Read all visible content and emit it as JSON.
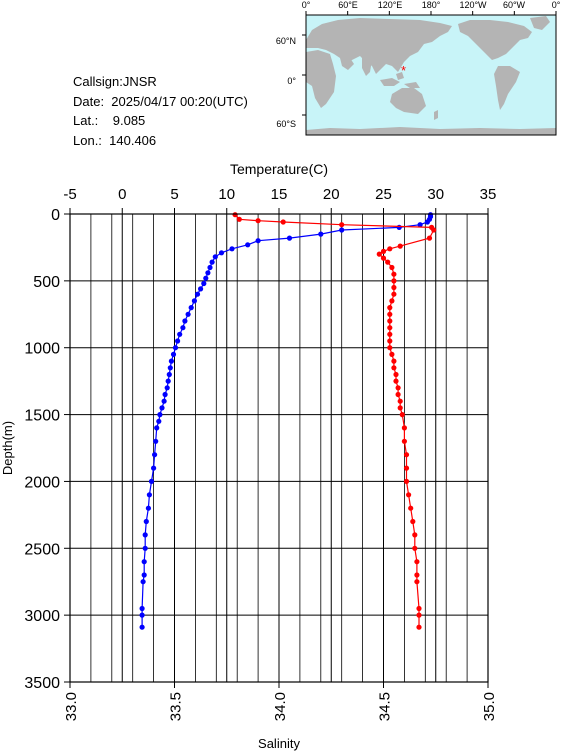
{
  "station": {
    "callsign": "Callsign:JNSR",
    "date": "Date:  2025/04/17 00:20(UTC)",
    "lat": "Lat.:    9.085",
    "lon": "Lon.:  140.406"
  },
  "map": {
    "top_ticks": [
      "0°",
      "60°E",
      "120°E",
      "180°",
      "120°W",
      "60°W",
      "0°"
    ],
    "right_ticks": [
      "60°N",
      "0°",
      "60°S"
    ],
    "ocean_color": "#c8f4f8",
    "land_color": "#b4b4b4",
    "marker_color": "#ff0000",
    "marker_lon": 140.406,
    "marker_lat": 9.085
  },
  "chart_data": {
    "type": "line",
    "xlabel_top": "Temperature(C)",
    "xlabel_bottom": "Salinity",
    "ylabel": "Depth(m)",
    "temp_lim": [
      -5,
      35
    ],
    "temp_ticks": [
      "-5",
      "0",
      "5",
      "10",
      "15",
      "20",
      "25",
      "30",
      "35"
    ],
    "sal_lim": [
      33.0,
      35.0
    ],
    "sal_ticks": [
      "33.0",
      "33.5",
      "34.0",
      "34.5",
      "35.0"
    ],
    "depth_lim": [
      0,
      3500
    ],
    "depth_ticks": [
      "0",
      "500",
      "1000",
      "1500",
      "2000",
      "2500",
      "3000",
      "3500"
    ],
    "grid": true,
    "series": [
      {
        "quantity": "temperature",
        "color": "#0000ff",
        "depth": [
          5,
          20,
          40,
          60,
          80,
          100,
          120,
          150,
          180,
          200,
          230,
          260,
          290,
          320,
          360,
          400,
          440,
          480,
          520,
          560,
          600,
          650,
          700,
          750,
          800,
          850,
          900,
          950,
          1000,
          1050,
          1100,
          1150,
          1200,
          1250,
          1300,
          1350,
          1400,
          1450,
          1500,
          1550,
          1600,
          1700,
          1800,
          1900,
          2000,
          2100,
          2200,
          2300,
          2400,
          2500,
          2600,
          2700,
          2750,
          2950,
          3000,
          3090
        ],
        "values": [
          29.5,
          29.5,
          29.4,
          29.2,
          28.5,
          26.5,
          21.0,
          19.0,
          16.0,
          13.0,
          12.0,
          10.5,
          9.5,
          8.9,
          8.6,
          8.4,
          8.2,
          8.0,
          7.8,
          7.5,
          7.2,
          6.9,
          6.6,
          6.3,
          6.0,
          5.8,
          5.5,
          5.3,
          5.1,
          4.9,
          4.7,
          4.6,
          4.5,
          4.4,
          4.3,
          4.1,
          4.0,
          3.8,
          3.6,
          3.5,
          3.3,
          3.2,
          3.1,
          3.0,
          2.8,
          2.6,
          2.5,
          2.3,
          2.2,
          2.2,
          2.1,
          2.1,
          2.0,
          1.9,
          1.9,
          1.9
        ]
      },
      {
        "quantity": "salinity",
        "color": "#ff0000",
        "depth": [
          5,
          40,
          50,
          60,
          80,
          100,
          120,
          180,
          240,
          260,
          280,
          300,
          330,
          360,
          400,
          450,
          500,
          550,
          600,
          650,
          700,
          750,
          800,
          850,
          900,
          950,
          1000,
          1050,
          1100,
          1150,
          1200,
          1250,
          1300,
          1350,
          1400,
          1450,
          1500,
          1600,
          1700,
          1800,
          1900,
          2000,
          2100,
          2200,
          2300,
          2400,
          2500,
          2600,
          2700,
          2750,
          2950,
          3000,
          3090
        ],
        "values": [
          33.79,
          33.81,
          33.9,
          34.02,
          34.3,
          34.73,
          34.74,
          34.72,
          34.58,
          34.53,
          34.5,
          34.48,
          34.5,
          34.52,
          34.54,
          34.55,
          34.55,
          34.55,
          34.55,
          34.54,
          34.53,
          34.53,
          34.53,
          34.53,
          34.53,
          34.53,
          34.53,
          34.54,
          34.55,
          34.55,
          34.56,
          34.56,
          34.57,
          34.57,
          34.58,
          34.58,
          34.59,
          34.6,
          34.6,
          34.61,
          34.61,
          34.61,
          34.62,
          34.63,
          34.64,
          34.65,
          34.65,
          34.66,
          34.66,
          34.66,
          34.67,
          34.67,
          34.67
        ]
      }
    ]
  }
}
